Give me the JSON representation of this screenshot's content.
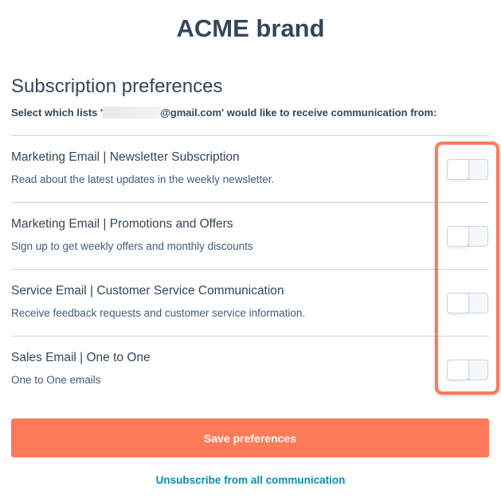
{
  "brand": "ACME brand",
  "title": "Subscription preferences",
  "subtitle_prefix": "Select which lists '",
  "subtitle_suffix": "@gmail.com' would like to receive communication from:",
  "subscriptions": [
    {
      "name": "Marketing Email | Newsletter Subscription",
      "description": "Read about the latest updates in the weekly newsletter.",
      "enabled": false
    },
    {
      "name": "Marketing Email | Promotions and Offers",
      "description": "Sign up to get weekly offers and monthly discounts",
      "enabled": false
    },
    {
      "name": "Service Email | Customer Service Communication",
      "description": "Receive feedback requests and customer service information.",
      "enabled": false
    },
    {
      "name": "Sales Email | One to One",
      "description": "One to One emails",
      "enabled": false
    }
  ],
  "save_label": "Save preferences",
  "unsubscribe_label": "Unsubscribe from all communication",
  "colors": {
    "accent": "#ff7a59",
    "link": "#0091ae",
    "text": "#33475b"
  }
}
